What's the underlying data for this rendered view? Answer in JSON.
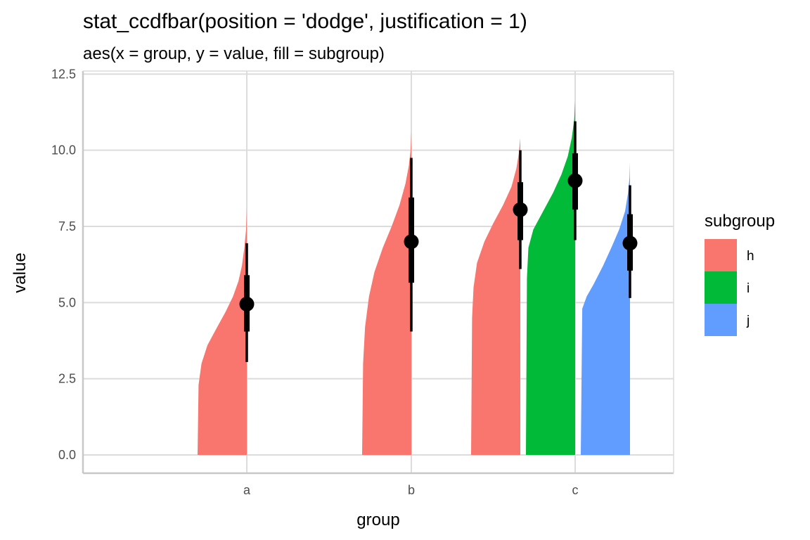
{
  "chart_data": {
    "type": "bar",
    "title": "stat_ccdfbar(position = 'dodge', justification = 1)",
    "subtitle": "aes(x = group, y = value, fill = subgroup)",
    "xlabel": "group",
    "ylabel": "value",
    "ylim": [
      -0.6,
      12.6
    ],
    "yticks": [
      0.0,
      2.5,
      5.0,
      7.5,
      10.0,
      12.5
    ],
    "ytick_labels": [
      "0.0",
      "2.5",
      "5.0",
      "7.5",
      "10.0",
      "12.5"
    ],
    "categories": [
      "a",
      "b",
      "c"
    ],
    "grid": true,
    "legend": {
      "title": "subgroup",
      "placement": "right",
      "entries": [
        {
          "label": "h",
          "color": "#F8766D"
        },
        {
          "label": "i",
          "color": "#00BA38"
        },
        {
          "label": "j",
          "color": "#619CFF"
        }
      ]
    },
    "series": [
      {
        "group": "a",
        "subgroup": "h",
        "color": "#F8766D",
        "median": 4.95,
        "interval_66": [
          4.05,
          5.9
        ],
        "interval_95": [
          3.05,
          6.95
        ],
        "min": 2.2,
        "max": 8.05,
        "profile": [
          [
            0.0,
            0.0
          ],
          [
            2.3,
            0.02
          ],
          [
            3.0,
            0.08
          ],
          [
            3.6,
            0.2
          ],
          [
            4.2,
            0.4
          ],
          [
            4.7,
            0.57
          ],
          [
            5.2,
            0.72
          ],
          [
            5.7,
            0.83
          ],
          [
            6.2,
            0.9
          ],
          [
            6.8,
            0.95
          ],
          [
            7.4,
            0.985
          ],
          [
            8.05,
            1.0
          ]
        ]
      },
      {
        "group": "b",
        "subgroup": "h",
        "color": "#F8766D",
        "median": 7.0,
        "interval_66": [
          5.65,
          8.45
        ],
        "interval_95": [
          4.05,
          9.75
        ],
        "min": 3.8,
        "max": 10.6,
        "profile": [
          [
            0.0,
            0.0
          ],
          [
            3.0,
            0.02
          ],
          [
            4.2,
            0.06
          ],
          [
            5.2,
            0.14
          ],
          [
            6.0,
            0.25
          ],
          [
            6.8,
            0.42
          ],
          [
            7.5,
            0.6
          ],
          [
            8.2,
            0.76
          ],
          [
            8.9,
            0.88
          ],
          [
            9.5,
            0.95
          ],
          [
            10.0,
            0.985
          ],
          [
            10.6,
            1.0
          ]
        ]
      },
      {
        "group": "c",
        "subgroup": "h",
        "color": "#F8766D",
        "median": 8.05,
        "interval_66": [
          7.05,
          8.95
        ],
        "interval_95": [
          6.1,
          10.0
        ],
        "min": 6.0,
        "max": 10.4,
        "profile": [
          [
            0.0,
            0.0
          ],
          [
            4.5,
            0.02
          ],
          [
            5.5,
            0.05
          ],
          [
            6.3,
            0.12
          ],
          [
            7.0,
            0.27
          ],
          [
            7.6,
            0.45
          ],
          [
            8.2,
            0.65
          ],
          [
            8.8,
            0.82
          ],
          [
            9.4,
            0.92
          ],
          [
            9.9,
            0.97
          ],
          [
            10.4,
            1.0
          ]
        ]
      },
      {
        "group": "c",
        "subgroup": "i",
        "color": "#00BA38",
        "median": 9.0,
        "interval_66": [
          8.05,
          9.9
        ],
        "interval_95": [
          7.05,
          10.95
        ],
        "min": 7.0,
        "max": 11.6,
        "profile": [
          [
            0.0,
            0.0
          ],
          [
            5.8,
            0.02
          ],
          [
            6.8,
            0.05
          ],
          [
            7.4,
            0.15
          ],
          [
            8.0,
            0.35
          ],
          [
            8.6,
            0.55
          ],
          [
            9.2,
            0.72
          ],
          [
            9.8,
            0.85
          ],
          [
            10.4,
            0.93
          ],
          [
            11.0,
            0.98
          ],
          [
            11.6,
            1.0
          ]
        ]
      },
      {
        "group": "c",
        "subgroup": "j",
        "color": "#619CFF",
        "median": 6.95,
        "interval_66": [
          6.05,
          7.9
        ],
        "interval_95": [
          5.15,
          8.85
        ],
        "min": 4.0,
        "max": 9.6,
        "profile": [
          [
            0.0,
            0.0
          ],
          [
            4.8,
            0.03
          ],
          [
            5.2,
            0.12
          ],
          [
            5.6,
            0.26
          ],
          [
            6.2,
            0.45
          ],
          [
            6.8,
            0.62
          ],
          [
            7.4,
            0.78
          ],
          [
            8.0,
            0.9
          ],
          [
            8.6,
            0.96
          ],
          [
            9.1,
            0.99
          ],
          [
            9.6,
            1.0
          ]
        ]
      }
    ]
  }
}
